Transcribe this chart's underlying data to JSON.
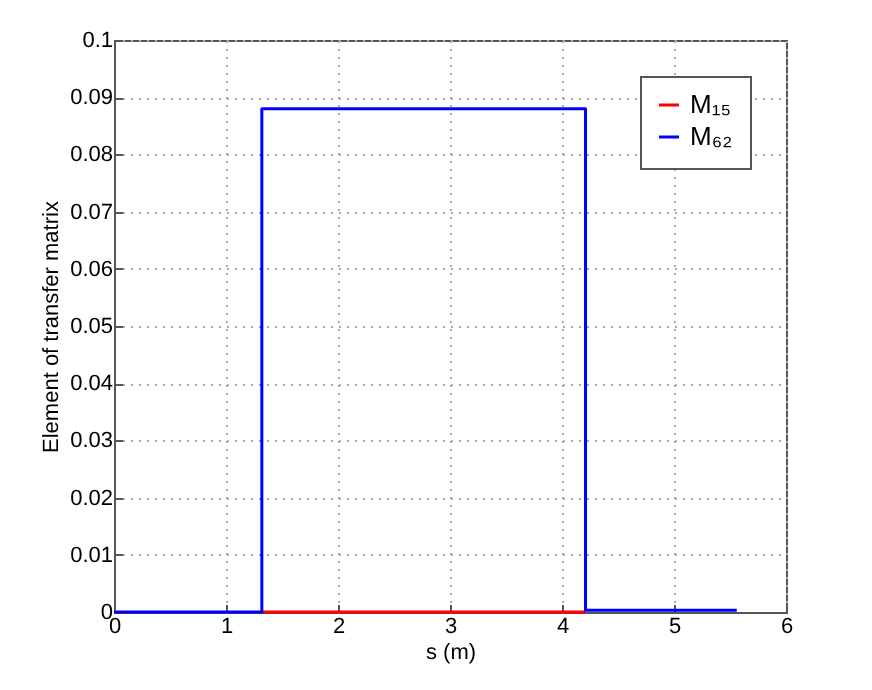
{
  "chart_data": {
    "type": "step",
    "xlabel": "s (m)",
    "ylabel": "Element of transfer matrix",
    "xlim": [
      0,
      6
    ],
    "xticks": [
      0,
      1,
      2,
      3,
      4,
      5,
      6
    ],
    "ylim": [
      0,
      0.1
    ],
    "yticks": [
      0,
      0.01,
      0.02,
      0.03,
      0.04,
      0.05,
      0.06,
      0.07,
      0.08,
      0.09,
      0.1
    ],
    "grid": true,
    "legend": "top right",
    "marker": "none",
    "line_style": "solid",
    "series": [
      {
        "name": "M₁₅",
        "color": "#ff0000",
        "x": [
          1.32,
          4.21
        ],
        "values": [
          0,
          0
        ]
      },
      {
        "name": "M₆₂",
        "color": "#0000ff",
        "x": [
          0,
          1.32,
          4.21,
          5.56
        ],
        "values": [
          0,
          0.088,
          0.0003,
          0.0003
        ]
      }
    ]
  }
}
